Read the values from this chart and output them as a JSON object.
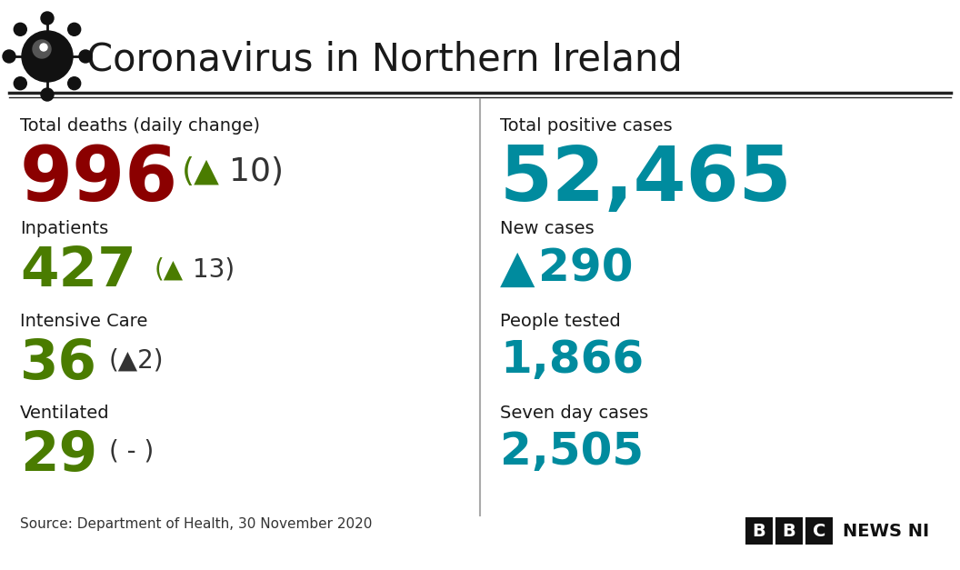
{
  "title": "Coronavirus in Northern Ireland",
  "bg_color": "#ffffff",
  "title_color": "#1a1a1a",
  "title_fontsize": 30,
  "header_line_color": "#222222",
  "left_col": {
    "total_deaths_label": "Total deaths (daily change)",
    "total_deaths_value": "996",
    "total_deaths_value_color": "#8b0000",
    "total_deaths_change_arrow": "(▲",
    "total_deaths_change_num": "10)",
    "total_deaths_arrow_color": "#4a7c00",
    "total_deaths_change_color": "#333333",
    "inpatients_label": "Inpatients",
    "inpatients_value": "427",
    "inpatients_change_arrow": "(▲",
    "inpatients_change_num": "13)",
    "inpatients_color": "#4a7c00",
    "icu_label": "Intensive Care",
    "icu_value": "36",
    "icu_change": "(▲2)",
    "icu_color": "#4a7c00",
    "vent_label": "Ventilated",
    "vent_value": "29",
    "vent_change": "( - )",
    "vent_color": "#4a7c00"
  },
  "right_col": {
    "total_positive_label": "Total positive cases",
    "total_positive_value": "52,465",
    "total_positive_color": "#008b9e",
    "new_cases_label": "New cases",
    "new_cases_arrow": "▲",
    "new_cases_value": "290",
    "new_cases_color": "#008b9e",
    "people_tested_label": "People tested",
    "people_tested_value": "1,866",
    "people_tested_color": "#008b9e",
    "seven_day_label": "Seven day cases",
    "seven_day_value": "2,505",
    "seven_day_color": "#008b9e"
  },
  "source_text": "Source: Department of Health, 30 November 2020",
  "source_color": "#333333",
  "source_fontsize": 11,
  "bbc_letters": [
    "B",
    "B",
    "C"
  ],
  "bbc_news_text": "NEWS NI",
  "bbc_bg_color": "#111111",
  "bbc_text_color": "#ffffff",
  "bbc_news_color": "#111111",
  "divider_color": "#aaaaaa",
  "label_color": "#1a1a1a",
  "change_color": "#333333"
}
